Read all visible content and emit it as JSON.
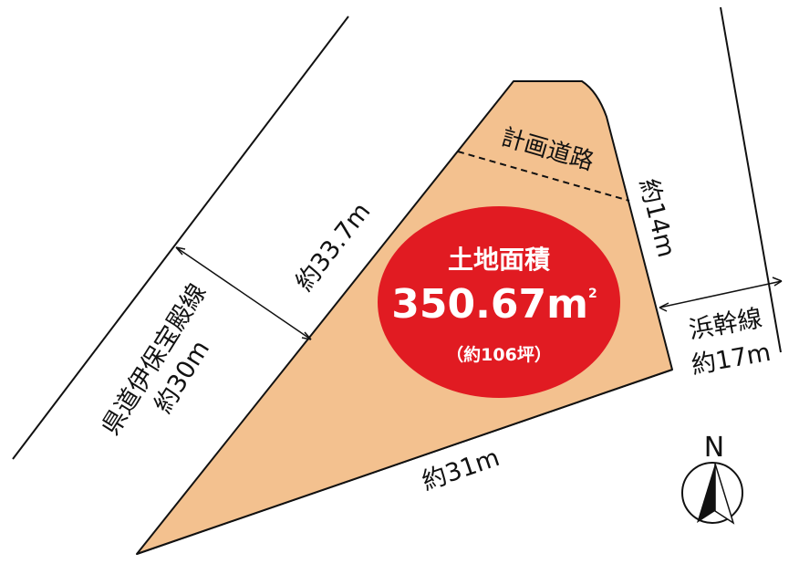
{
  "colors": {
    "lot_fill": "#F3C18F",
    "outline": "#111111",
    "badge": "#E11B22",
    "badge_text": "#FFFFFF"
  },
  "lot": {
    "planned_road_label": "計画道路",
    "dim_northeast": "約14m",
    "dim_northwest": "約33.7m",
    "dim_south": "約31m"
  },
  "roads": {
    "west_name": "県道伊保宝殿線",
    "west_width": "約30m",
    "east_name": "浜幹線",
    "east_width": "約17m"
  },
  "area_badge": {
    "title": "土地面積",
    "value": "350.67",
    "unit_main": "m",
    "unit_sup": "2",
    "tsubo": "（約106坪）"
  },
  "compass": {
    "label": "N",
    "icon": "north-arrow-icon"
  }
}
